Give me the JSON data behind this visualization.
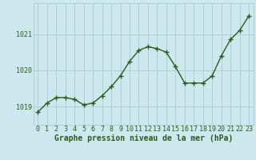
{
  "x": [
    0,
    1,
    2,
    3,
    4,
    5,
    6,
    7,
    8,
    9,
    10,
    11,
    12,
    13,
    14,
    15,
    16,
    17,
    18,
    19,
    20,
    21,
    22,
    23
  ],
  "y": [
    1018.85,
    1019.1,
    1019.25,
    1019.25,
    1019.2,
    1019.05,
    1019.1,
    1019.3,
    1019.55,
    1019.85,
    1020.25,
    1020.55,
    1020.65,
    1020.6,
    1020.5,
    1020.1,
    1019.65,
    1019.65,
    1019.65,
    1019.85,
    1020.4,
    1020.85,
    1021.1,
    1021.5
  ],
  "line_color": "#2d5a1b",
  "marker": "+",
  "marker_size": 4,
  "marker_lw": 1.0,
  "line_width": 1.0,
  "bg_color": "#cce8ee",
  "grid_color": "#aacccc",
  "title": "Graphe pression niveau de la mer (hPa)",
  "xlabel_ticks": [
    "0",
    "1",
    "2",
    "3",
    "4",
    "5",
    "6",
    "7",
    "8",
    "9",
    "10",
    "11",
    "12",
    "13",
    "14",
    "15",
    "16",
    "17",
    "18",
    "19",
    "20",
    "21",
    "22",
    "23"
  ],
  "yticks": [
    1019,
    1020,
    1021
  ],
  "ylim": [
    1018.5,
    1021.85
  ],
  "xlim": [
    -0.5,
    23.5
  ],
  "tick_fontsize": 6.0,
  "label_fontsize": 7.0,
  "text_color": "#2d5a1b"
}
